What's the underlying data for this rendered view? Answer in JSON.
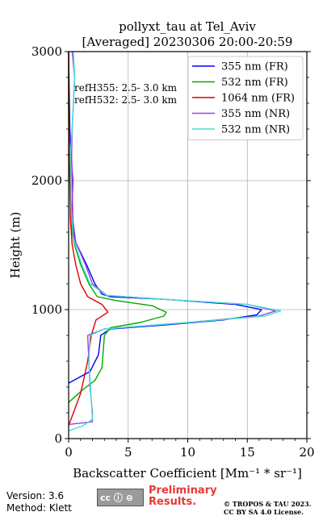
{
  "chart_data": {
    "type": "line",
    "title": "pollyxt_tau at Tel_Aviv",
    "subtitle": "[Averaged] 20230306 20:00-20:59",
    "xlabel": "Backscatter Coefficient [Mm⁻¹ * sr⁻¹]",
    "ylabel": "Height (m)",
    "xlim": [
      0,
      20
    ],
    "ylim": [
      0,
      3000
    ],
    "xticks": [
      0,
      5,
      10,
      15,
      20
    ],
    "yticks": [
      0,
      1000,
      2000,
      3000
    ],
    "grid": true,
    "legend_position": "top-right",
    "annotations": [
      "refH355:  2.5- 3.0 km",
      "refH532:  2.5- 3.0 km"
    ],
    "series": [
      {
        "name": "355 nm (FR)",
        "color": "#0000ff",
        "points": [
          [
            0,
            430
          ],
          [
            0.8,
            470
          ],
          [
            1.8,
            520
          ],
          [
            2.5,
            650
          ],
          [
            2.7,
            800
          ],
          [
            3.5,
            850
          ],
          [
            8,
            880
          ],
          [
            13,
            920
          ],
          [
            15.8,
            960
          ],
          [
            16.2,
            1000
          ],
          [
            14,
            1040
          ],
          [
            8,
            1080
          ],
          [
            3.5,
            1100
          ],
          [
            2.8,
            1120
          ],
          [
            2.2,
            1200
          ],
          [
            1.5,
            1350
          ],
          [
            0.6,
            1520
          ],
          [
            0.4,
            1600
          ],
          [
            0.3,
            1800
          ],
          [
            0.35,
            2000
          ],
          [
            0.2,
            2200
          ],
          [
            0.1,
            2400
          ],
          [
            0.05,
            2700
          ],
          [
            0,
            3000
          ]
        ]
      },
      {
        "name": "532 nm (FR)",
        "color": "#00aa00",
        "points": [
          [
            0,
            280
          ],
          [
            1.2,
            380
          ],
          [
            2.2,
            450
          ],
          [
            2.8,
            550
          ],
          [
            3.0,
            800
          ],
          [
            3.5,
            860
          ],
          [
            6,
            900
          ],
          [
            8,
            950
          ],
          [
            8.2,
            980
          ],
          [
            7,
            1030
          ],
          [
            4,
            1070
          ],
          [
            2.4,
            1100
          ],
          [
            1.7,
            1200
          ],
          [
            1.0,
            1350
          ],
          [
            0.5,
            1500
          ],
          [
            0.3,
            1600
          ],
          [
            0.2,
            1800
          ],
          [
            0.1,
            2000
          ],
          [
            0.05,
            2200
          ],
          [
            0,
            2500
          ],
          [
            0,
            3000
          ]
        ]
      },
      {
        "name": "1064 nm (FR)",
        "color": "#dd0000",
        "points": [
          [
            0,
            100
          ],
          [
            0.4,
            200
          ],
          [
            1.0,
            350
          ],
          [
            1.6,
            600
          ],
          [
            1.9,
            800
          ],
          [
            2.3,
            920
          ],
          [
            3.3,
            980
          ],
          [
            2.8,
            1040
          ],
          [
            1.6,
            1100
          ],
          [
            1.0,
            1200
          ],
          [
            0.6,
            1350
          ],
          [
            0.3,
            1500
          ],
          [
            0.15,
            1700
          ],
          [
            0.1,
            2000
          ],
          [
            0.05,
            2300
          ],
          [
            0,
            2600
          ],
          [
            0,
            3000
          ]
        ]
      },
      {
        "name": "355 nm (NR)",
        "color": "#a040e0",
        "points": [
          [
            0,
            110
          ],
          [
            2.0,
            130
          ],
          [
            2.0,
            200
          ],
          [
            1.8,
            400
          ],
          [
            1.6,
            800
          ],
          [
            3,
            850
          ],
          [
            10,
            900
          ],
          [
            16,
            950
          ],
          [
            17.4,
            990
          ],
          [
            15,
            1040
          ],
          [
            8,
            1080
          ],
          [
            3.2,
            1110
          ],
          [
            2.0,
            1200
          ],
          [
            1.4,
            1350
          ],
          [
            0.6,
            1520
          ],
          [
            0.35,
            1700
          ],
          [
            0.3,
            2000
          ],
          [
            0.25,
            2200
          ],
          [
            0.3,
            2400
          ],
          [
            0.4,
            2600
          ],
          [
            0.5,
            2800
          ],
          [
            0.3,
            3000
          ]
        ]
      },
      {
        "name": "532 nm (NR)",
        "color": "#40e0d0",
        "points": [
          [
            0,
            60
          ],
          [
            1.2,
            100
          ],
          [
            2.0,
            150
          ],
          [
            1.9,
            300
          ],
          [
            1.7,
            600
          ],
          [
            1.8,
            800
          ],
          [
            3,
            850
          ],
          [
            10,
            900
          ],
          [
            16.5,
            950
          ],
          [
            17.8,
            990
          ],
          [
            15,
            1040
          ],
          [
            8,
            1080
          ],
          [
            3.2,
            1110
          ],
          [
            1.8,
            1200
          ],
          [
            1.1,
            1350
          ],
          [
            0.4,
            1550
          ],
          [
            0.2,
            1800
          ],
          [
            0.2,
            2000
          ],
          [
            0.15,
            2200
          ],
          [
            0.3,
            2400
          ],
          [
            0.4,
            2600
          ],
          [
            0.5,
            2800
          ],
          [
            0.4,
            3000
          ]
        ]
      }
    ]
  },
  "footer": {
    "version": "Version: 3.6",
    "method": "Method: Klett",
    "badge": "cc ⓘ ⊜",
    "preliminary": "Preliminary Results.",
    "copyright": "© TROPOS & TAU 2023.",
    "license": "CC BY SA 4.0 License."
  }
}
